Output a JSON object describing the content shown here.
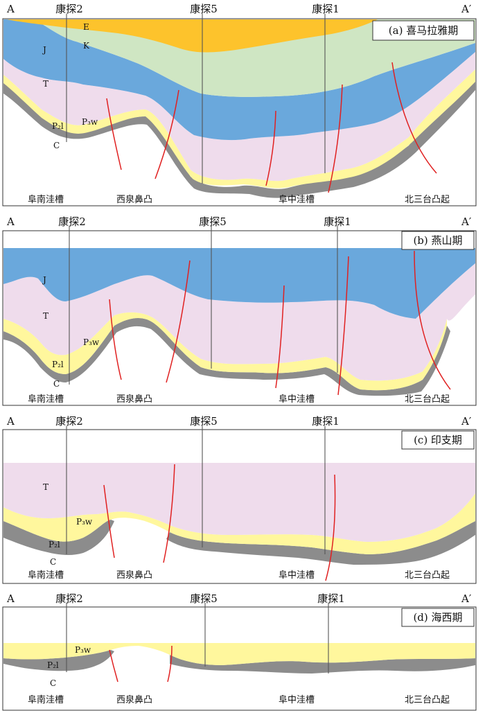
{
  "colors": {
    "E": "#fdc32c",
    "K": "#cfe6c3",
    "J": "#6aa8dc",
    "T": "#efdcec",
    "P3w": "#fff79d",
    "P2l": "#8c8c8c",
    "fault": "#e02020"
  },
  "endpoints": {
    "left": "A",
    "right": "A′"
  },
  "wells": [
    "康探2",
    "康探5",
    "康探1"
  ],
  "locations": [
    "阜南洼槽",
    "西泉鼻凸",
    "阜中洼槽",
    "北三台凸起"
  ],
  "panels": [
    {
      "stage": "(a) 喜马拉雅期",
      "units": {
        "E": "E",
        "K": "K",
        "J": "J",
        "T": "T",
        "P3w": "P₃w",
        "P2l": "P₂l",
        "C": "C"
      }
    },
    {
      "stage": "(b) 燕山期",
      "units": {
        "J": "J",
        "T": "T",
        "P3w": "P₃w",
        "P2l": "P₂l",
        "C": "C"
      }
    },
    {
      "stage": "(c) 印支期",
      "units": {
        "T": "T",
        "P3w": "P₃w",
        "P2l": "P₂l",
        "C": "C"
      }
    },
    {
      "stage": "(d) 海西期",
      "units": {
        "P3w": "P₃w",
        "P2l": "P₂l",
        "C": "C"
      }
    }
  ]
}
